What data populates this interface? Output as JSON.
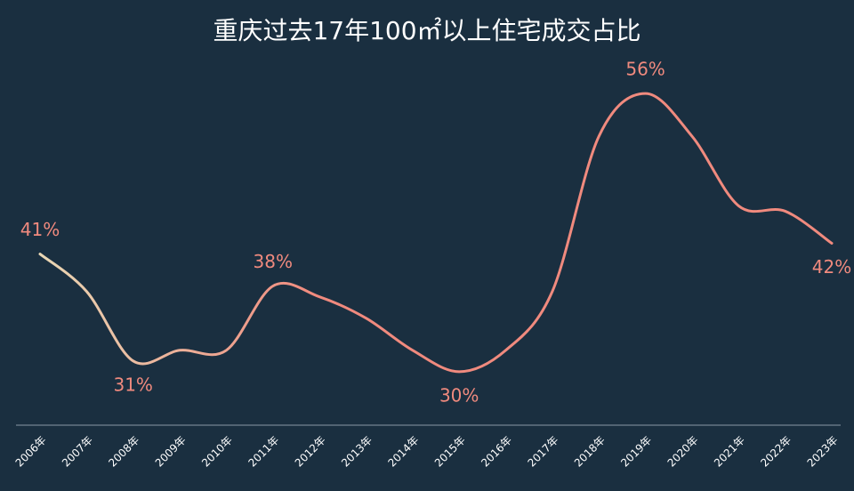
{
  "chart_data": {
    "type": "line",
    "title": "重庆过去17年100㎡以上住宅成交占比",
    "categories": [
      "2006年",
      "2007年",
      "2008年",
      "2009年",
      "2010年",
      "2011年",
      "2012年",
      "2013年",
      "2014年",
      "2015年",
      "2016年",
      "2017年",
      "2018年",
      "2019年",
      "2020年",
      "2021年",
      "2022年",
      "2023年"
    ],
    "values": [
      41,
      37.5,
      31,
      32,
      32,
      38,
      37,
      35,
      32,
      30,
      32,
      37.5,
      52,
      56,
      52,
      45.5,
      45,
      42
    ],
    "value_labels": [
      "41%",
      null,
      "31%",
      null,
      null,
      "38%",
      null,
      null,
      null,
      "30%",
      null,
      null,
      null,
      "56%",
      null,
      null,
      null,
      "42%"
    ],
    "color": "#f08a7e",
    "start_color": "#e9d7b4",
    "ylim": [
      25,
      60
    ]
  }
}
